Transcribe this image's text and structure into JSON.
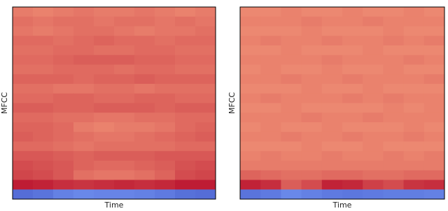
{
  "chart_data": [
    {
      "type": "heatmap",
      "xlabel": "Time",
      "ylabel": "MFCC",
      "colormap": "coolwarm",
      "zlim": [
        0,
        1
      ],
      "z": [
        [
          0.8,
          0.79,
          0.8,
          0.81,
          0.8,
          0.8,
          0.81,
          0.8,
          0.79,
          0.8
        ],
        [
          0.82,
          0.81,
          0.82,
          0.82,
          0.81,
          0.82,
          0.82,
          0.81,
          0.82,
          0.81
        ],
        [
          0.81,
          0.8,
          0.81,
          0.82,
          0.82,
          0.81,
          0.8,
          0.81,
          0.81,
          0.82
        ],
        [
          0.83,
          0.83,
          0.82,
          0.83,
          0.84,
          0.83,
          0.83,
          0.82,
          0.83,
          0.83
        ],
        [
          0.82,
          0.82,
          0.83,
          0.83,
          0.82,
          0.82,
          0.83,
          0.83,
          0.82,
          0.82
        ],
        [
          0.83,
          0.83,
          0.84,
          0.85,
          0.85,
          0.85,
          0.84,
          0.84,
          0.83,
          0.83
        ],
        [
          0.82,
          0.82,
          0.83,
          0.83,
          0.83,
          0.82,
          0.83,
          0.83,
          0.82,
          0.82
        ],
        [
          0.84,
          0.84,
          0.84,
          0.83,
          0.84,
          0.84,
          0.85,
          0.84,
          0.84,
          0.84
        ],
        [
          0.82,
          0.82,
          0.81,
          0.81,
          0.82,
          0.82,
          0.81,
          0.82,
          0.82,
          0.82
        ],
        [
          0.83,
          0.83,
          0.84,
          0.84,
          0.83,
          0.83,
          0.84,
          0.84,
          0.83,
          0.83
        ],
        [
          0.85,
          0.85,
          0.84,
          0.84,
          0.85,
          0.85,
          0.85,
          0.84,
          0.85,
          0.85
        ],
        [
          0.83,
          0.83,
          0.82,
          0.82,
          0.81,
          0.81,
          0.82,
          0.82,
          0.83,
          0.83
        ],
        [
          0.84,
          0.84,
          0.83,
          0.8,
          0.79,
          0.8,
          0.8,
          0.81,
          0.83,
          0.84
        ],
        [
          0.85,
          0.84,
          0.83,
          0.82,
          0.81,
          0.81,
          0.82,
          0.83,
          0.84,
          0.85
        ],
        [
          0.83,
          0.83,
          0.82,
          0.81,
          0.82,
          0.82,
          0.82,
          0.82,
          0.83,
          0.83
        ],
        [
          0.86,
          0.86,
          0.85,
          0.84,
          0.85,
          0.85,
          0.85,
          0.86,
          0.86,
          0.86
        ],
        [
          0.88,
          0.87,
          0.86,
          0.84,
          0.83,
          0.83,
          0.84,
          0.85,
          0.87,
          0.88
        ],
        [
          0.89,
          0.88,
          0.86,
          0.82,
          0.81,
          0.81,
          0.82,
          0.84,
          0.88,
          0.89
        ],
        [
          0.96,
          0.95,
          0.93,
          0.92,
          0.93,
          0.94,
          0.93,
          0.94,
          0.96,
          0.96
        ],
        [
          0.1,
          0.12,
          0.16,
          0.18,
          0.17,
          0.17,
          0.16,
          0.14,
          0.11,
          0.1
        ]
      ]
    },
    {
      "type": "heatmap",
      "xlabel": "Time",
      "ylabel": "MFCC",
      "colormap": "coolwarm",
      "zlim": [
        0,
        1
      ],
      "z": [
        [
          0.78,
          0.78,
          0.79,
          0.78,
          0.78,
          0.79,
          0.78,
          0.78,
          0.79,
          0.78
        ],
        [
          0.79,
          0.79,
          0.79,
          0.8,
          0.79,
          0.79,
          0.8,
          0.79,
          0.79,
          0.79
        ],
        [
          0.78,
          0.78,
          0.78,
          0.79,
          0.78,
          0.78,
          0.78,
          0.79,
          0.78,
          0.78
        ],
        [
          0.79,
          0.8,
          0.79,
          0.79,
          0.8,
          0.79,
          0.79,
          0.8,
          0.79,
          0.8
        ],
        [
          0.78,
          0.78,
          0.79,
          0.78,
          0.78,
          0.78,
          0.79,
          0.78,
          0.78,
          0.78
        ],
        [
          0.79,
          0.79,
          0.79,
          0.79,
          0.8,
          0.79,
          0.79,
          0.79,
          0.8,
          0.79
        ],
        [
          0.78,
          0.79,
          0.78,
          0.78,
          0.79,
          0.78,
          0.78,
          0.79,
          0.78,
          0.78
        ],
        [
          0.79,
          0.79,
          0.8,
          0.79,
          0.79,
          0.8,
          0.79,
          0.79,
          0.79,
          0.8
        ],
        [
          0.78,
          0.78,
          0.78,
          0.79,
          0.78,
          0.78,
          0.79,
          0.78,
          0.78,
          0.78
        ],
        [
          0.79,
          0.8,
          0.79,
          0.79,
          0.79,
          0.8,
          0.79,
          0.8,
          0.79,
          0.79
        ],
        [
          0.78,
          0.78,
          0.79,
          0.78,
          0.78,
          0.78,
          0.78,
          0.79,
          0.78,
          0.79
        ],
        [
          0.79,
          0.79,
          0.79,
          0.8,
          0.79,
          0.79,
          0.8,
          0.79,
          0.79,
          0.79
        ],
        [
          0.78,
          0.79,
          0.78,
          0.78,
          0.79,
          0.78,
          0.78,
          0.78,
          0.79,
          0.78
        ],
        [
          0.79,
          0.79,
          0.8,
          0.79,
          0.79,
          0.8,
          0.79,
          0.79,
          0.8,
          0.79
        ],
        [
          0.78,
          0.78,
          0.78,
          0.79,
          0.78,
          0.78,
          0.79,
          0.78,
          0.78,
          0.78
        ],
        [
          0.79,
          0.8,
          0.79,
          0.79,
          0.8,
          0.79,
          0.79,
          0.8,
          0.79,
          0.8
        ],
        [
          0.8,
          0.8,
          0.8,
          0.8,
          0.8,
          0.8,
          0.8,
          0.8,
          0.8,
          0.8
        ],
        [
          0.84,
          0.83,
          0.82,
          0.82,
          0.83,
          0.83,
          0.82,
          0.82,
          0.83,
          0.83
        ],
        [
          0.95,
          0.93,
          0.85,
          0.88,
          0.95,
          0.94,
          0.9,
          0.88,
          0.92,
          0.93
        ],
        [
          0.12,
          0.14,
          0.18,
          0.16,
          0.14,
          0.13,
          0.14,
          0.15,
          0.15,
          0.16
        ]
      ]
    }
  ]
}
